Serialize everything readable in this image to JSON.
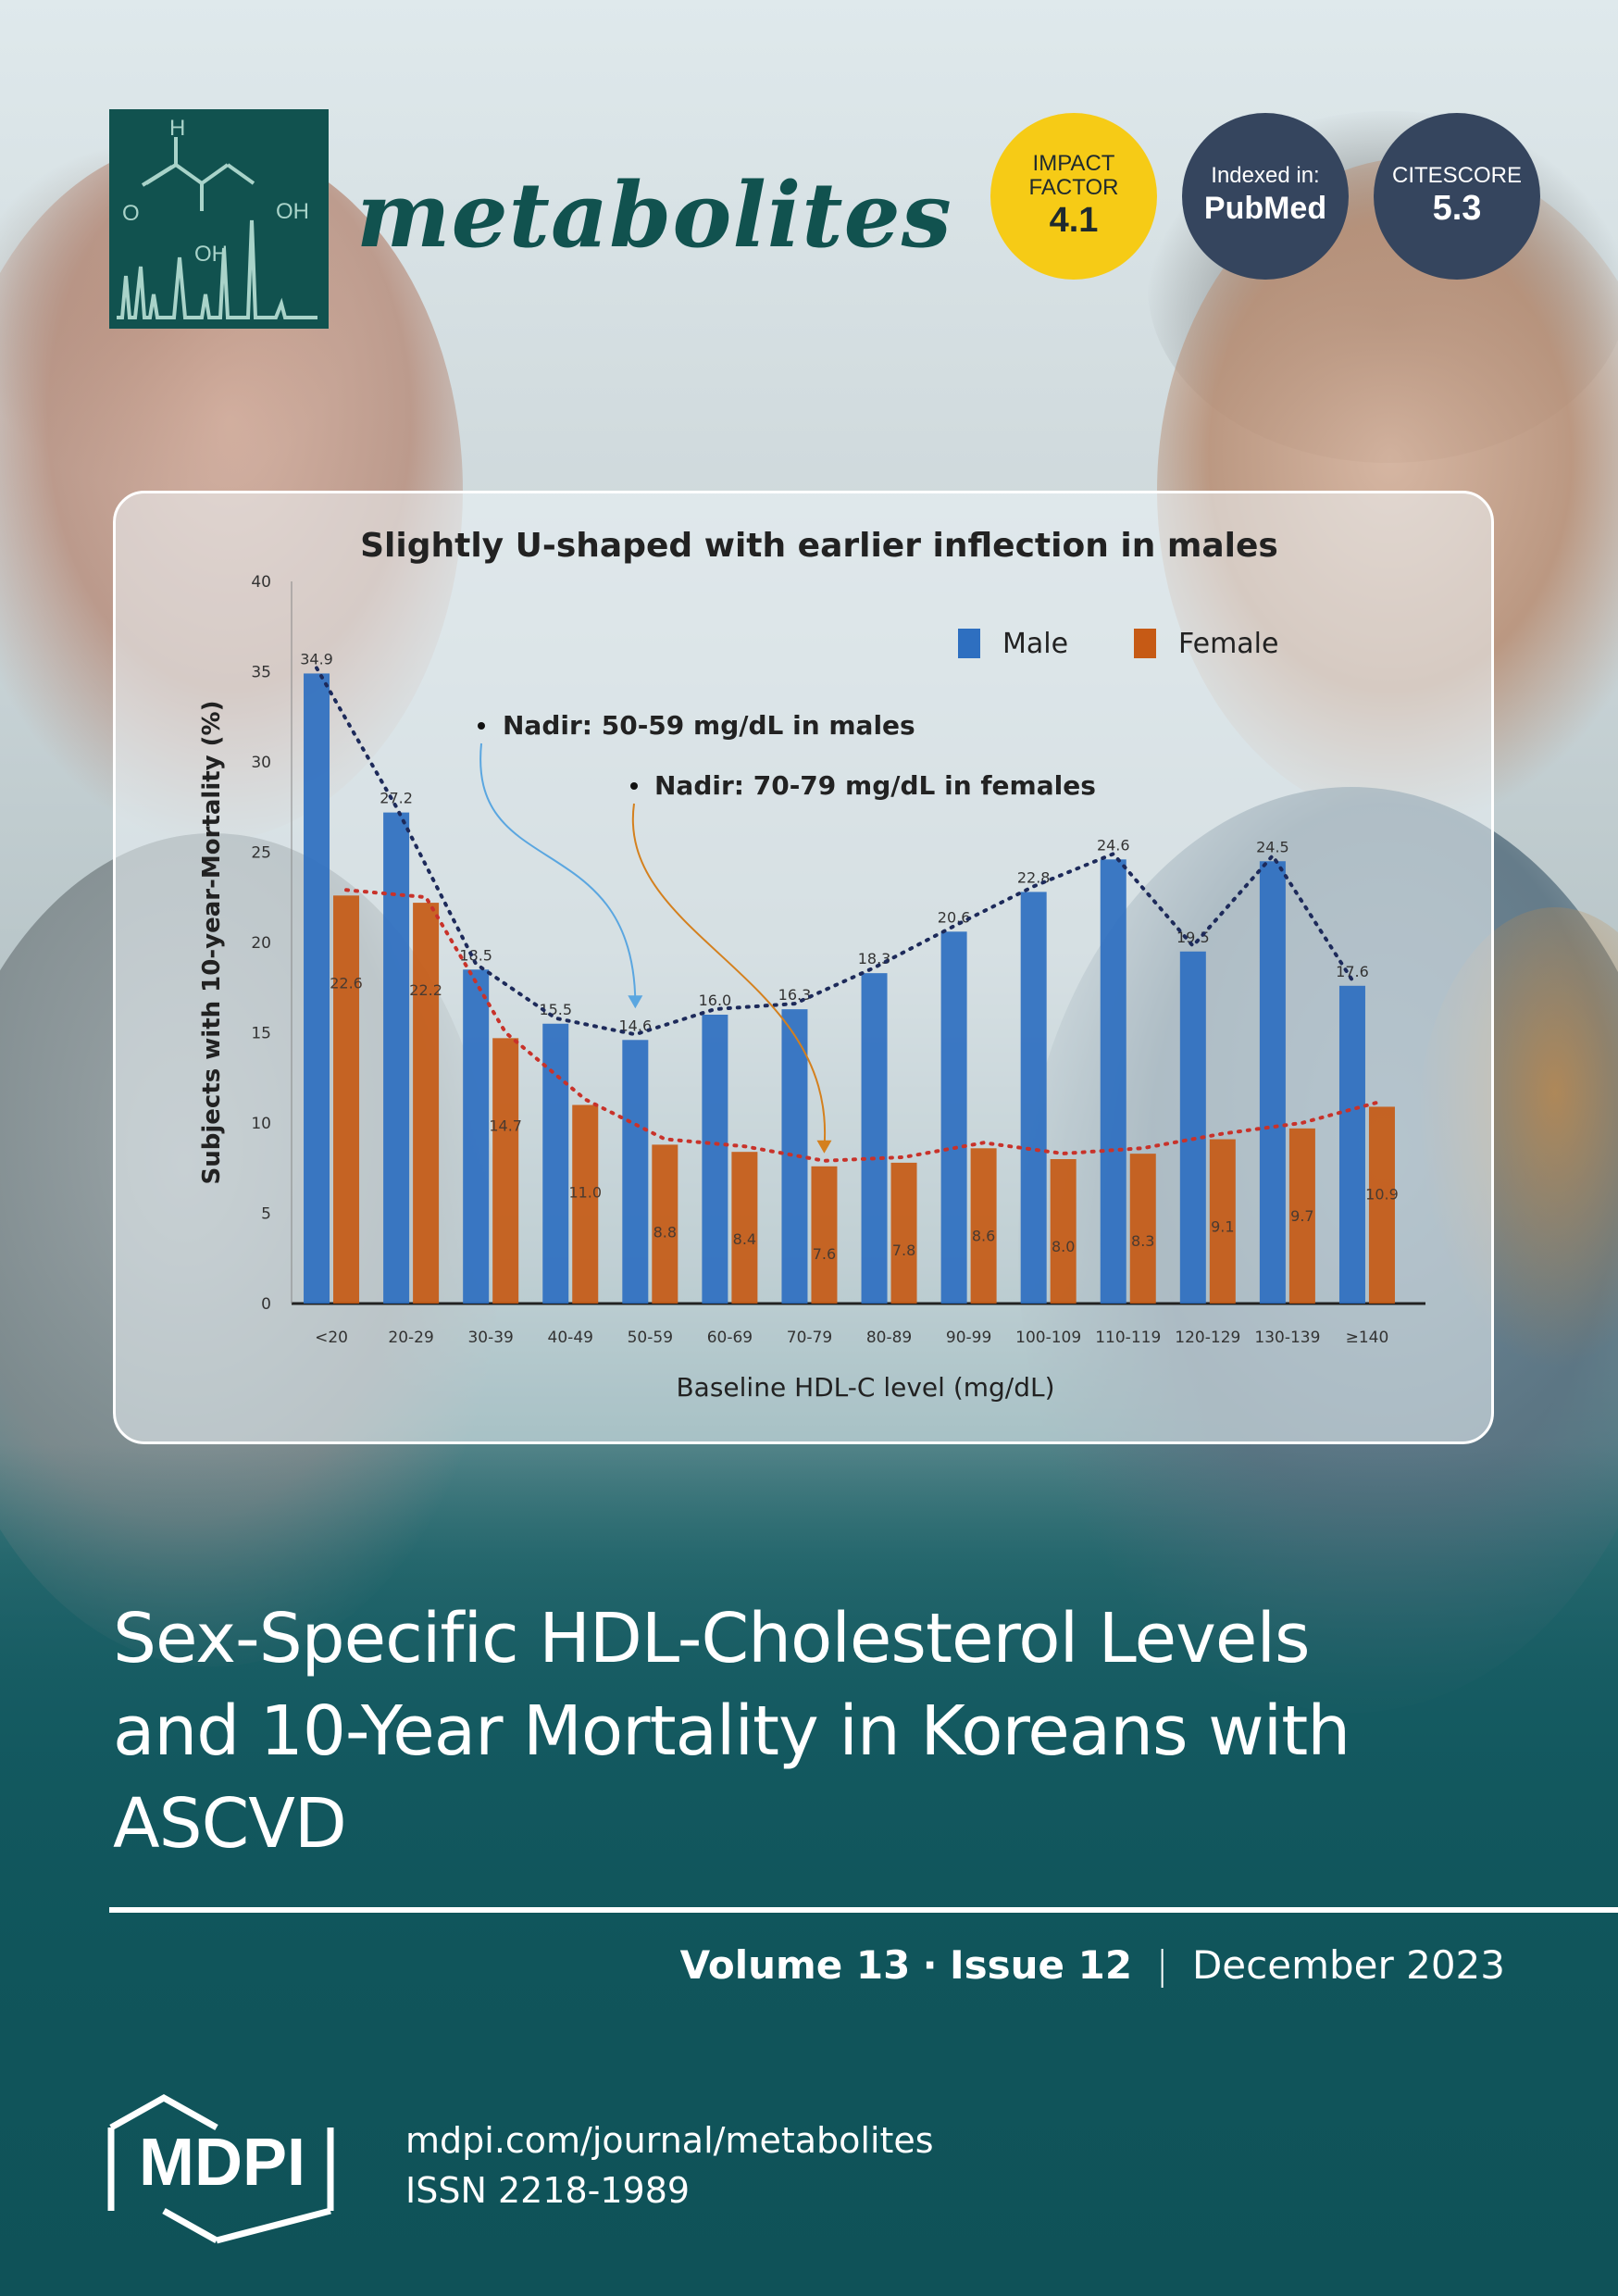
{
  "journal": {
    "name": "metabolites",
    "logo_letters": {
      "h": "H",
      "o": "O",
      "oh1": "OH",
      "oh2": "OH"
    }
  },
  "badges": {
    "impact": {
      "line1": "IMPACT",
      "line2": "FACTOR",
      "value": "4.1",
      "color": "#f6cb16"
    },
    "pubmed": {
      "line1": "Indexed in:",
      "value": "PubMed",
      "color": "#35455e"
    },
    "citescore": {
      "line1": "CITESCORE",
      "value": "5.3",
      "color": "#35455e"
    }
  },
  "chart_data": {
    "type": "bar",
    "title": "Slightly U-shaped with earlier inflection in males",
    "xlabel": "Baseline HDL-C level (mg/dL)",
    "ylabel": "Subjects with 10-year-Mortality (%)",
    "ylim": [
      0,
      40
    ],
    "yticks": [
      "0",
      "5",
      "10",
      "15",
      "20",
      "25",
      "30",
      "35",
      "40"
    ],
    "categories": [
      "<20",
      "20-29",
      "30-39",
      "40-49",
      "50-59",
      "60-69",
      "70-79",
      "80-89",
      "90-99",
      "100-109",
      "110-119",
      "120-129",
      "130-139",
      "≥140"
    ],
    "series": [
      {
        "name": "Male",
        "color": "#2e6fc0",
        "values": [
          34.9,
          27.2,
          18.5,
          15.5,
          14.6,
          16.0,
          16.3,
          18.3,
          20.6,
          22.8,
          24.6,
          19.5,
          24.5,
          17.6
        ],
        "labels": [
          "34.9",
          "27.2",
          "18.5",
          "15.5",
          "14.6",
          "16.0",
          "16.3",
          "18.3",
          "20.6",
          "22.8",
          "24.6",
          "19.5",
          "24.5",
          "17.6"
        ]
      },
      {
        "name": "Female",
        "color": "#c65a15",
        "values": [
          22.6,
          22.2,
          14.7,
          11.0,
          8.8,
          8.4,
          7.6,
          7.8,
          8.6,
          8.0,
          8.3,
          9.1,
          9.7,
          10.9
        ],
        "labels": [
          "22.6",
          "22.2",
          "14.7",
          "11.0",
          "8.8",
          "8.4",
          "7.6",
          "7.8",
          "8.6",
          "8.0",
          "8.3",
          "9.1",
          "9.7",
          "10.9"
        ]
      }
    ],
    "annotations": [
      "Nadir: 50-59  mg/dL in males",
      "Nadir: 70-79  mg/dL in females"
    ],
    "legend": "top-right",
    "grid": false
  },
  "article": {
    "title_lines": [
      "Sex-Specific HDL-Cholesterol Levels",
      "and 10-Year Mortality in Koreans with",
      "ASCVD"
    ]
  },
  "issue": {
    "volume": "Volume 13",
    "dot": "·",
    "issue": "Issue 12",
    "divider": "|",
    "date": "December 2023"
  },
  "publisher": {
    "logo_text": "MDPI",
    "url": "mdpi.com/journal/metabolites",
    "issn": "ISSN 2218-1989"
  }
}
